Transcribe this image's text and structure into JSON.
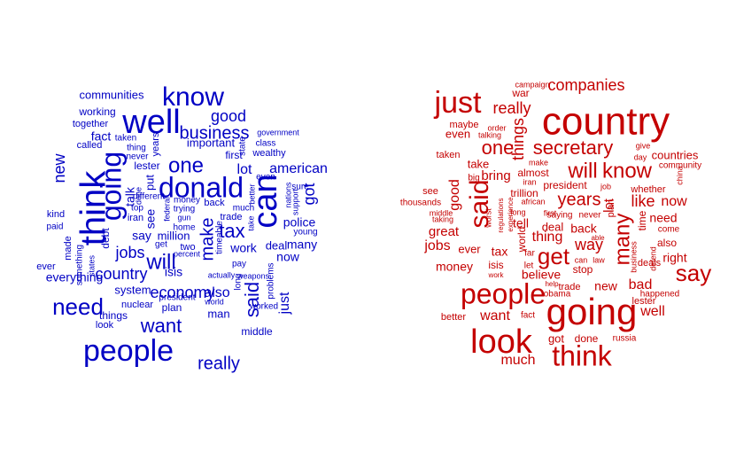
{
  "colors": {
    "left": "#0000c4",
    "right": "#c40000"
  },
  "clouds": [
    {
      "name": "wordcloud-left",
      "color_key": "left",
      "words": [
        "think",
        "people",
        "well",
        "know",
        "going",
        "can",
        "donald",
        "need",
        "one",
        "will",
        "want",
        "said",
        "really",
        "good",
        "business",
        "make",
        "country",
        "jobs",
        "tax",
        "lot",
        "american",
        "new",
        "got",
        "just",
        "economy",
        "work",
        "police",
        "many",
        "also",
        "fact",
        "communities",
        "working",
        "together",
        "called",
        "taken",
        "thing",
        "years",
        "never",
        "lester",
        "put",
        "talk",
        "done",
        "different",
        "top",
        "iran",
        "money",
        "federal",
        "trying",
        "gun",
        "home",
        "back",
        "timeable",
        "first",
        "trade",
        "important",
        "state",
        "class",
        "wealthy",
        "government",
        "even",
        "better",
        "much",
        "take",
        "deal",
        "nations",
        "sure",
        "young",
        "now",
        "kind",
        "paid",
        "made",
        "ever",
        "something",
        "states",
        "everything",
        "debt",
        "say",
        "million",
        "see",
        "get",
        "percent",
        "two",
        "isis",
        "actually",
        "weapons",
        "long",
        "pay",
        "problems",
        "system",
        "nuclear",
        "plan",
        "president",
        "world",
        "worked",
        "man",
        "middle",
        "things",
        "look",
        "support",
        "sure"
      ]
    },
    {
      "name": "wordcloud-right",
      "color_key": "right",
      "words": [
        "going",
        "country",
        "people",
        "look",
        "said",
        "think",
        "just",
        "get",
        "many",
        "know",
        "will",
        "say",
        "one",
        "secretary",
        "companies",
        "really",
        "campaign",
        "war",
        "maybe",
        "even",
        "order",
        "talking",
        "taken",
        "take",
        "things",
        "bring",
        "good",
        "big",
        "worst",
        "see",
        "thousands",
        "middle",
        "taking",
        "great",
        "jobs",
        "ever",
        "tax",
        "isis",
        "money",
        "work",
        "trillion",
        "almost",
        "years",
        "like",
        "now",
        "whether",
        "need",
        "time",
        "also",
        "right",
        "deals",
        "bad",
        "new",
        "well",
        "happened",
        "president",
        "job",
        "china",
        "countries",
        "community",
        "day",
        "give",
        "make",
        "iran",
        "first",
        "saying",
        "never",
        "world",
        "tell",
        "thing",
        "deal",
        "back",
        "way",
        "able",
        "can",
        "law",
        "stop",
        "believe",
        "trade",
        "obama",
        "help",
        "let",
        "far",
        "african",
        "experience",
        "regulations",
        "long",
        "fact",
        "want",
        "better",
        "much",
        "got",
        "done",
        "russia",
        "lester",
        "defend",
        "come",
        "business",
        "plan",
        "lot"
      ]
    }
  ]
}
